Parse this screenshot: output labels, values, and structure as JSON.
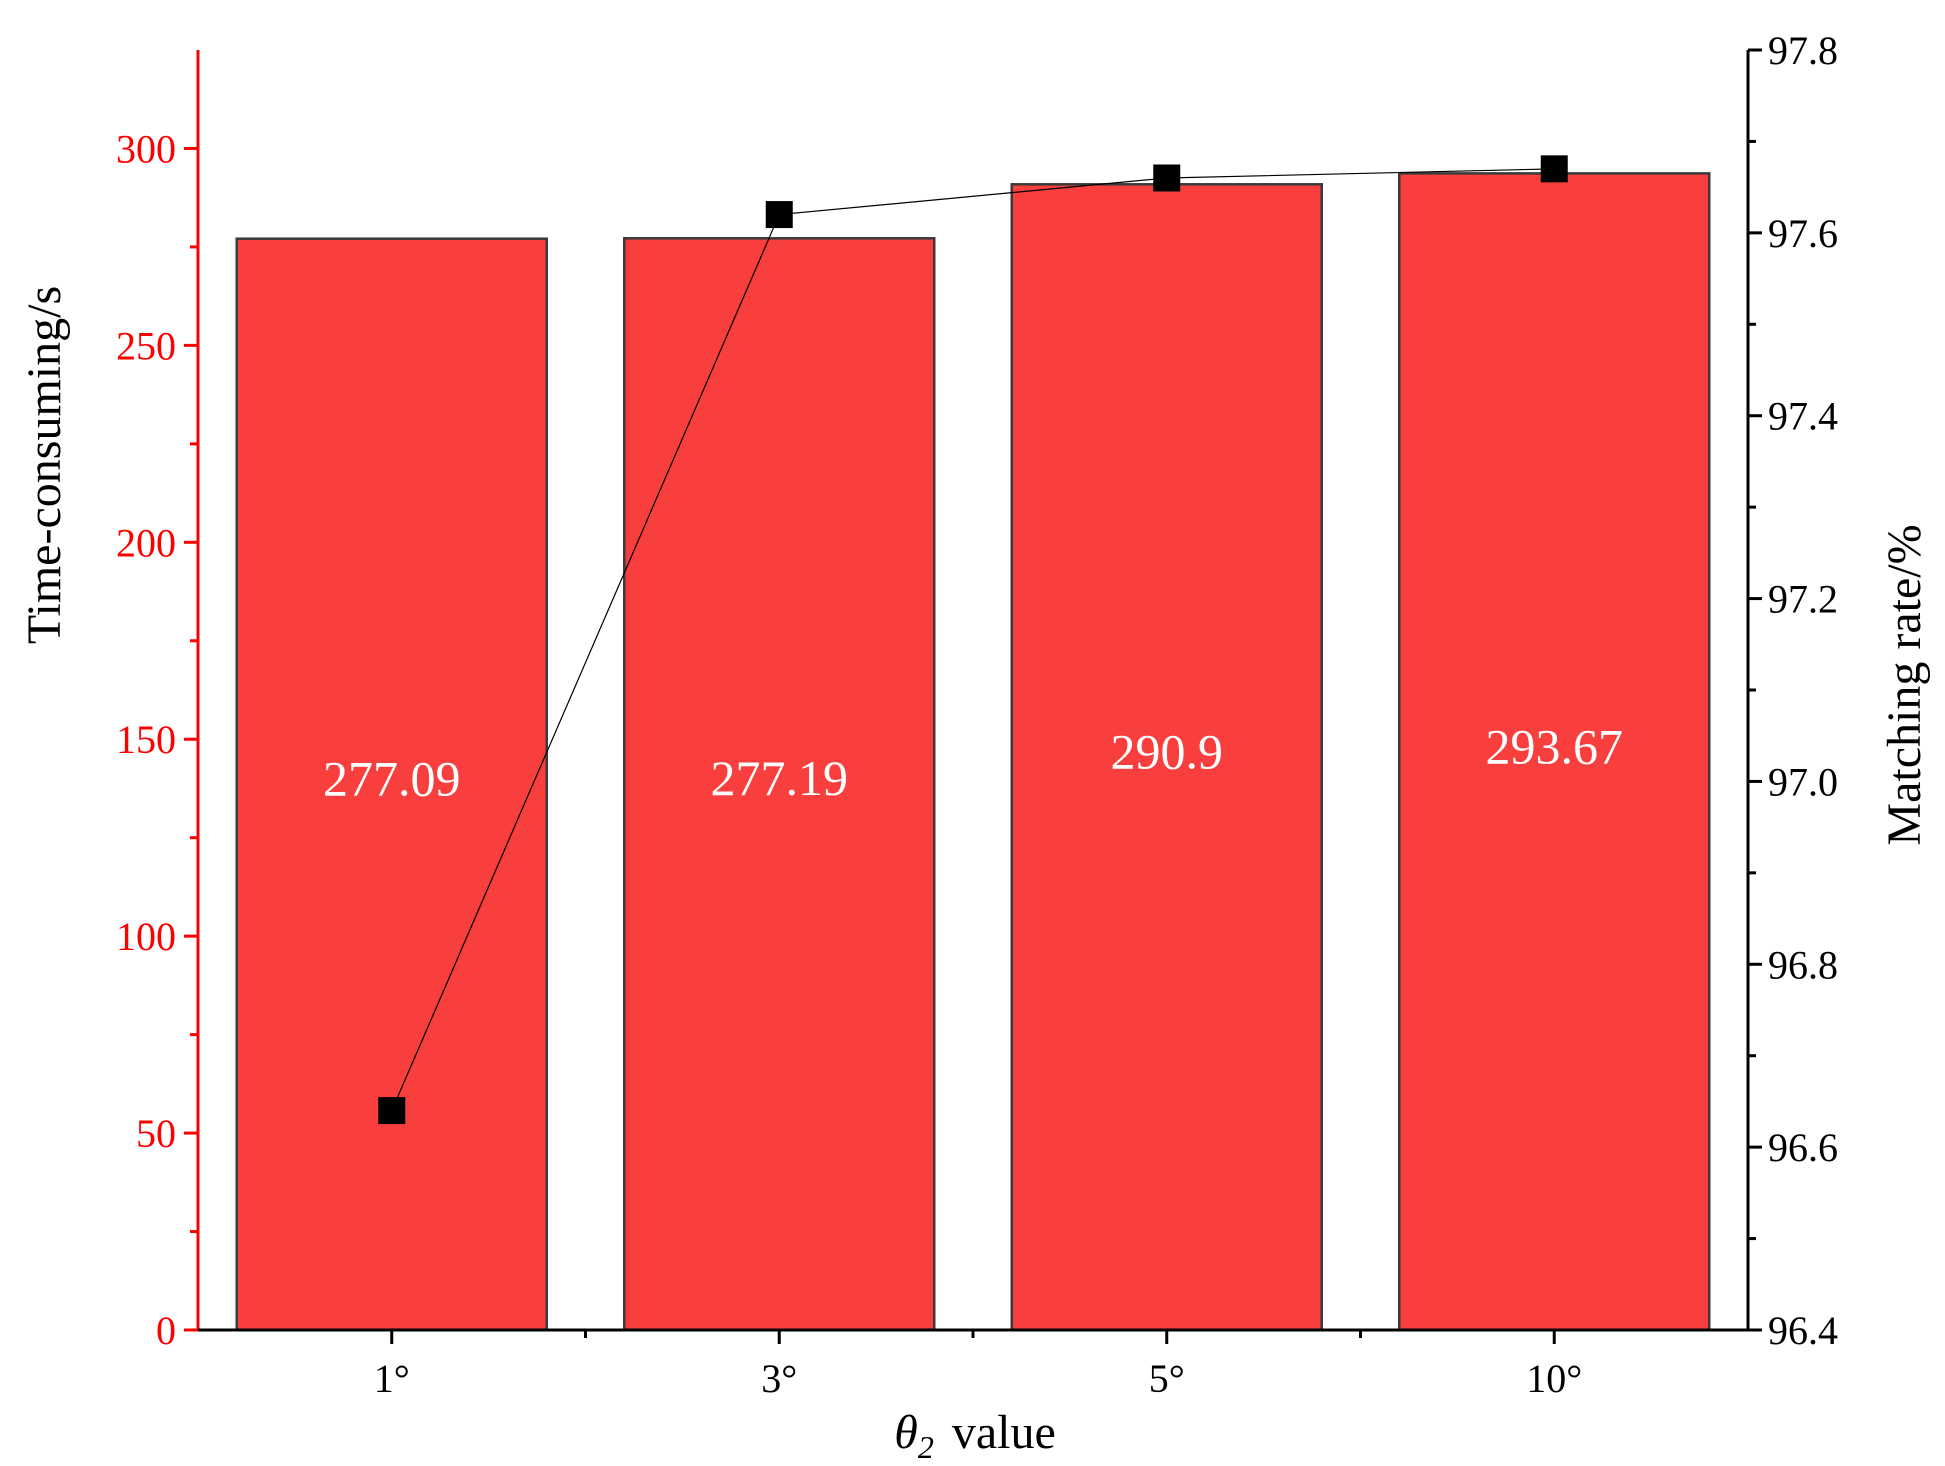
{
  "chart_data": {
    "type": "bar",
    "categories": [
      "1°",
      "3°",
      "5°",
      "10°"
    ],
    "series": [
      {
        "type": "bar",
        "axis": "left",
        "values": [
          277.09,
          277.19,
          290.9,
          293.67
        ],
        "value_labels": [
          "277.09",
          "277.19",
          "290.9",
          "293.67"
        ],
        "color": "#f93e3e"
      },
      {
        "type": "line",
        "axis": "right",
        "values": [
          96.64,
          97.62,
          97.66,
          97.67
        ],
        "color": "#000000",
        "marker": "square"
      }
    ],
    "xlabel_symbol": "θ",
    "xlabel_subscript": "2",
    "xlabel_text": "value",
    "ylabel_left": "Time-consuming/s",
    "ylabel_right": "Matching rate/%",
    "ylim_left": [
      0,
      325
    ],
    "ylim_right": [
      96.4,
      97.8
    ],
    "yticks_left": [
      0,
      50,
      100,
      150,
      200,
      250,
      300
    ],
    "yticks_right": [
      96.4,
      96.6,
      96.8,
      97.0,
      97.2,
      97.4,
      97.6,
      97.8
    ],
    "yticks_right_labels": [
      "96.4",
      "96.6",
      "96.8",
      "97.0",
      "97.2",
      "97.4",
      "97.6",
      "97.8"
    ],
    "left_axis_color": "#ff0000",
    "right_axis_color": "#000000",
    "grid": false,
    "legend": "none"
  }
}
